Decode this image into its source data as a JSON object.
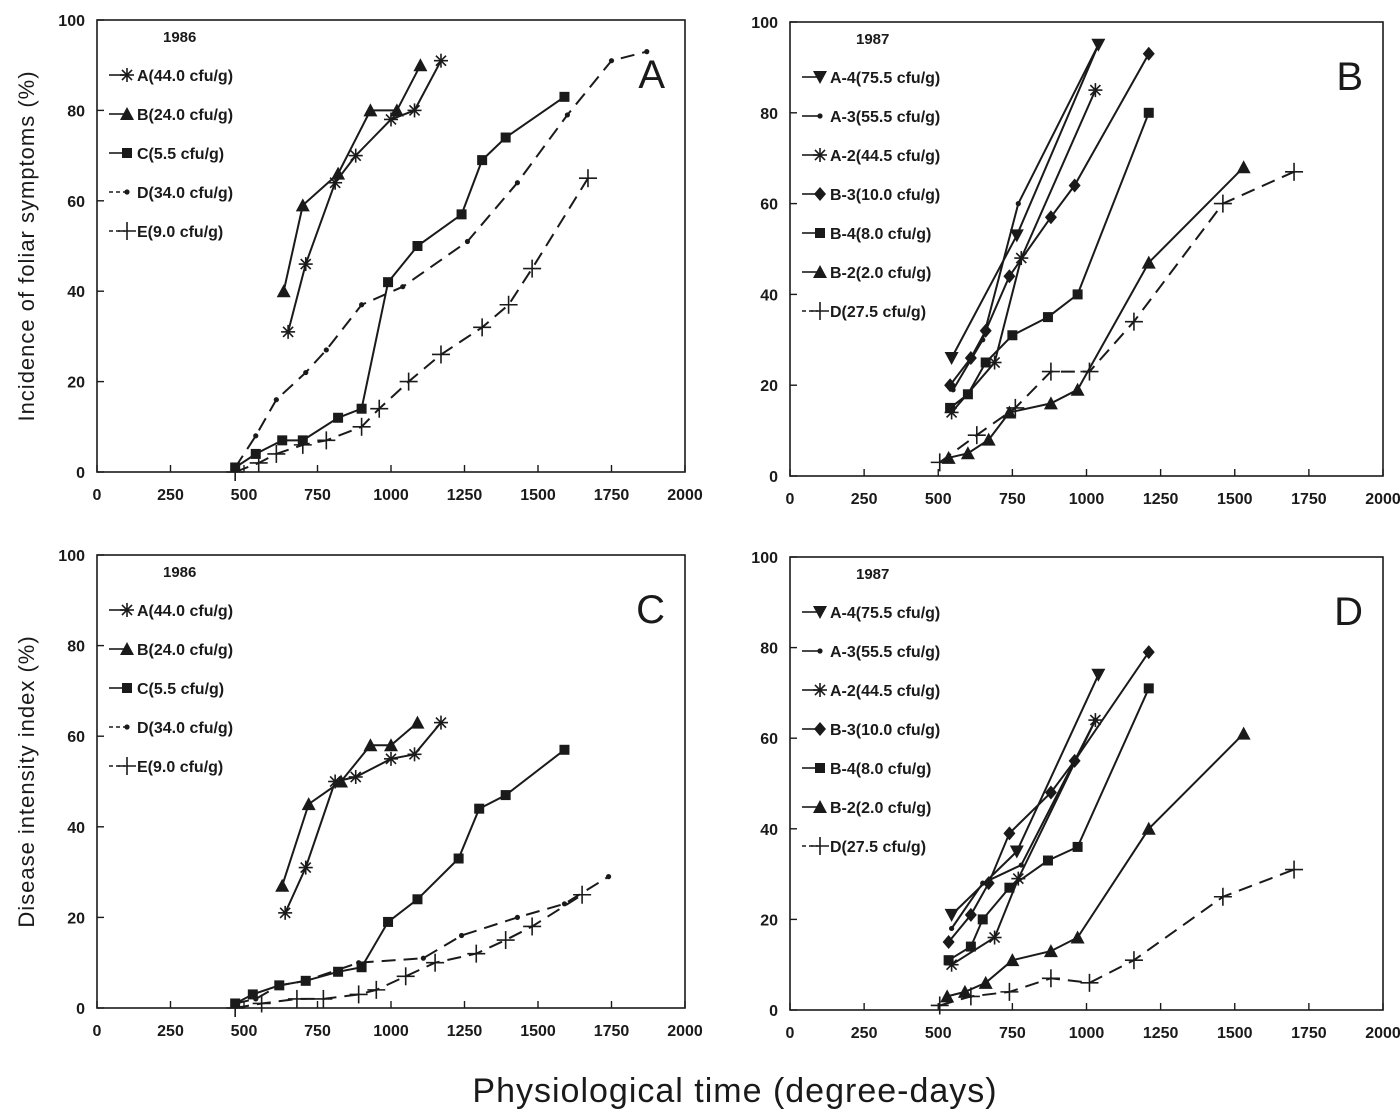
{
  "figure": {
    "xlabel": "Physiological time (degree-days)"
  },
  "chart_data": [
    {
      "type": "line",
      "panel": "A",
      "year": "1986",
      "xlabel": "",
      "ylabel": "Incidence of foliar symptoms (%)",
      "xlim": [
        0,
        2000
      ],
      "ylim": [
        0,
        100
      ],
      "xticks": [
        "0",
        "250",
        "500",
        "750",
        "1000",
        "1250",
        "1500",
        "1750",
        "2000"
      ],
      "yticks": [
        "0",
        "20",
        "40",
        "60",
        "80",
        "100"
      ],
      "legend": "top-left",
      "grid": false,
      "series": [
        {
          "name": "A(44.0 cfu/g)",
          "marker": "asterisk",
          "dashed": false,
          "x": [
            650,
            710,
            810,
            880,
            1000,
            1080,
            1170
          ],
          "y": [
            31,
            46,
            64,
            70,
            78,
            80,
            91
          ]
        },
        {
          "name": "B(24.0 cfu/g)",
          "marker": "triangle",
          "dashed": false,
          "x": [
            635,
            700,
            820,
            930,
            1020,
            1100
          ],
          "y": [
            40,
            59,
            66,
            80,
            80,
            90
          ]
        },
        {
          "name": "C(5.5 cfu/g)",
          "marker": "square",
          "dashed": false,
          "x": [
            470,
            540,
            630,
            700,
            820,
            900,
            990,
            1090,
            1240,
            1310,
            1390,
            1590
          ],
          "y": [
            1,
            4,
            7,
            7,
            12,
            14,
            42,
            50,
            57,
            69,
            74,
            83
          ]
        },
        {
          "name": "D(34.0 cfu/g)",
          "marker": "dot",
          "dashed": true,
          "x": [
            470,
            540,
            610,
            710,
            780,
            900,
            1040,
            1260,
            1430,
            1600,
            1750,
            1870
          ],
          "y": [
            1,
            8,
            16,
            22,
            27,
            37,
            41,
            51,
            64,
            79,
            91,
            93
          ]
        },
        {
          "name": "E(9.0 cfu/g)",
          "marker": "plus",
          "dashed": true,
          "x": [
            470,
            550,
            610,
            700,
            780,
            900,
            960,
            1060,
            1170,
            1310,
            1400,
            1480,
            1670
          ],
          "y": [
            0,
            2,
            4,
            6,
            7,
            10,
            14,
            20,
            26,
            32,
            37,
            45,
            65
          ]
        }
      ]
    },
    {
      "type": "line",
      "panel": "B",
      "year": "1987",
      "xlabel": "",
      "ylabel": "",
      "xlim": [
        0,
        2000
      ],
      "ylim": [
        0,
        100
      ],
      "xticks": [
        "0",
        "250",
        "500",
        "750",
        "1000",
        "1250",
        "1500",
        "1750",
        "2000"
      ],
      "yticks": [
        "0",
        "20",
        "40",
        "60",
        "80",
        "100"
      ],
      "legend": "top-left",
      "grid": false,
      "series": [
        {
          "name": "A-4(75.5 cfu/g)",
          "marker": "triangle-down",
          "dashed": false,
          "x": [
            545,
            765,
            1040
          ],
          "y": [
            26,
            53,
            95
          ]
        },
        {
          "name": "A-3(55.5 cfu/g)",
          "marker": "dot",
          "dashed": false,
          "x": [
            550,
            650,
            770,
            1040
          ],
          "y": [
            19,
            30,
            60,
            95
          ]
        },
        {
          "name": "A-2(44.5 cfu/g)",
          "marker": "asterisk",
          "dashed": false,
          "x": [
            545,
            690,
            780,
            1030
          ],
          "y": [
            14,
            25,
            48,
            85
          ]
        },
        {
          "name": "B-3(10.0 cfu/g)",
          "marker": "diamond",
          "dashed": false,
          "x": [
            540,
            610,
            660,
            740,
            880,
            960,
            1210
          ],
          "y": [
            20,
            26,
            32,
            44,
            57,
            64,
            93
          ]
        },
        {
          "name": "B-4(8.0 cfu/g)",
          "marker": "square",
          "dashed": false,
          "x": [
            540,
            600,
            660,
            750,
            870,
            970,
            1210
          ],
          "y": [
            15,
            18,
            25,
            31,
            35,
            40,
            80
          ]
        },
        {
          "name": "B-2(2.0 cfu/g)",
          "marker": "triangle",
          "dashed": false,
          "x": [
            535,
            600,
            670,
            740,
            880,
            970,
            1210,
            1530
          ],
          "y": [
            4,
            5,
            8,
            14,
            16,
            19,
            47,
            68
          ]
        },
        {
          "name": "D(27.5 cfu/g)",
          "marker": "plus",
          "dashed": true,
          "x": [
            505,
            630,
            760,
            880,
            1010,
            1160,
            1460,
            1700
          ],
          "y": [
            3,
            9,
            15,
            23,
            23,
            34,
            60,
            67
          ]
        }
      ]
    },
    {
      "type": "line",
      "panel": "C",
      "year": "1986",
      "xlabel": "",
      "ylabel": "Disease intensity index (%)",
      "xlim": [
        0,
        2000
      ],
      "ylim": [
        0,
        100
      ],
      "xticks": [
        "0",
        "250",
        "500",
        "750",
        "1000",
        "1250",
        "1500",
        "1750",
        "2000"
      ],
      "yticks": [
        "0",
        "20",
        "40",
        "60",
        "80",
        "100"
      ],
      "legend": "top-left",
      "grid": false,
      "series": [
        {
          "name": "A(44.0 cfu/g)",
          "marker": "asterisk",
          "dashed": false,
          "x": [
            640,
            710,
            810,
            880,
            1000,
            1080,
            1170
          ],
          "y": [
            21,
            31,
            50,
            51,
            55,
            56,
            63
          ]
        },
        {
          "name": "B(24.0 cfu/g)",
          "marker": "triangle",
          "dashed": false,
          "x": [
            630,
            720,
            830,
            930,
            1000,
            1090
          ],
          "y": [
            27,
            45,
            50,
            58,
            58,
            63
          ]
        },
        {
          "name": "C(5.5 cfu/g)",
          "marker": "square",
          "dashed": false,
          "x": [
            470,
            530,
            620,
            710,
            820,
            900,
            990,
            1090,
            1230,
            1300,
            1390,
            1590
          ],
          "y": [
            1,
            3,
            5,
            6,
            8,
            9,
            19,
            24,
            33,
            44,
            47,
            57
          ]
        },
        {
          "name": "D(34.0 cfu/g)",
          "marker": "dot",
          "dashed": true,
          "x": [
            470,
            540,
            620,
            710,
            890,
            1110,
            1240,
            1430,
            1590,
            1740
          ],
          "y": [
            1,
            2,
            5,
            6,
            10,
            11,
            16,
            20,
            23,
            29
          ]
        },
        {
          "name": "E(9.0 cfu/g)",
          "marker": "plus",
          "dashed": true,
          "x": [
            470,
            560,
            680,
            770,
            890,
            950,
            1050,
            1150,
            1290,
            1390,
            1480,
            1650
          ],
          "y": [
            0,
            1,
            2,
            2,
            3,
            4,
            7,
            10,
            12,
            15,
            18,
            25
          ]
        }
      ]
    },
    {
      "type": "line",
      "panel": "D",
      "year": "1987",
      "xlabel": "",
      "ylabel": "",
      "xlim": [
        0,
        2000
      ],
      "ylim": [
        0,
        100
      ],
      "xticks": [
        "0",
        "250",
        "500",
        "750",
        "1000",
        "1250",
        "1500",
        "1750",
        "2000"
      ],
      "yticks": [
        "0",
        "20",
        "40",
        "60",
        "80",
        "100"
      ],
      "legend": "top-left",
      "grid": false,
      "series": [
        {
          "name": "A-4(75.5 cfu/g)",
          "marker": "triangle-down",
          "dashed": false,
          "x": [
            545,
            765,
            1040
          ],
          "y": [
            21,
            35,
            74
          ]
        },
        {
          "name": "A-3(55.5 cfu/g)",
          "marker": "dot",
          "dashed": false,
          "x": [
            545,
            650,
            780,
            1030
          ],
          "y": [
            18,
            28,
            32,
            64
          ]
        },
        {
          "name": "A-2(44.5 cfu/g)",
          "marker": "asterisk",
          "dashed": false,
          "x": [
            545,
            690,
            770,
            1030
          ],
          "y": [
            10,
            16,
            29,
            64
          ]
        },
        {
          "name": "B-3(10.0 cfu/g)",
          "marker": "diamond",
          "dashed": false,
          "x": [
            535,
            610,
            670,
            740,
            880,
            960,
            1210
          ],
          "y": [
            15,
            21,
            28,
            39,
            48,
            55,
            79
          ]
        },
        {
          "name": "B-4(8.0 cfu/g)",
          "marker": "square",
          "dashed": false,
          "x": [
            535,
            610,
            650,
            740,
            870,
            970,
            1210
          ],
          "y": [
            11,
            14,
            20,
            27,
            33,
            36,
            71
          ]
        },
        {
          "name": "B-2(2.0 cfu/g)",
          "marker": "triangle",
          "dashed": false,
          "x": [
            530,
            590,
            660,
            750,
            880,
            970,
            1210,
            1530
          ],
          "y": [
            3,
            4,
            6,
            11,
            13,
            16,
            40,
            61
          ]
        },
        {
          "name": "D(27.5 cfu/g)",
          "marker": "plus",
          "dashed": true,
          "x": [
            505,
            610,
            740,
            880,
            1010,
            1160,
            1460,
            1700
          ],
          "y": [
            1,
            3,
            4,
            7,
            6,
            11,
            25,
            31
          ]
        }
      ]
    }
  ]
}
